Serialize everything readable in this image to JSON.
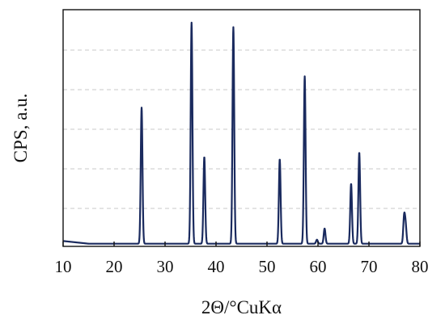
{
  "chart_data": {
    "type": "line",
    "title": "",
    "xlabel": "2Θ/°CuKα",
    "ylabel": "CPS, a.u.",
    "xlim": [
      10,
      80
    ],
    "ylim": [
      0,
      100
    ],
    "x_ticks": [
      10,
      20,
      30,
      40,
      50,
      60,
      70,
      80
    ],
    "grid": "horizontal-dashed",
    "line_color": "#1a2a5e",
    "grid_color": "#c8c8c8",
    "baseline": 1.2,
    "peaks": [
      {
        "x": 25.4,
        "y": 62
      },
      {
        "x": 35.2,
        "y": 100
      },
      {
        "x": 37.7,
        "y": 40
      },
      {
        "x": 43.4,
        "y": 98
      },
      {
        "x": 52.5,
        "y": 39
      },
      {
        "x": 57.4,
        "y": 76
      },
      {
        "x": 59.8,
        "y": 3
      },
      {
        "x": 61.3,
        "y": 8
      },
      {
        "x": 66.5,
        "y": 28
      },
      {
        "x": 68.1,
        "y": 42
      },
      {
        "x": 76.9,
        "y": 13
      },
      {
        "x": 77.2,
        "y": 9
      }
    ]
  }
}
